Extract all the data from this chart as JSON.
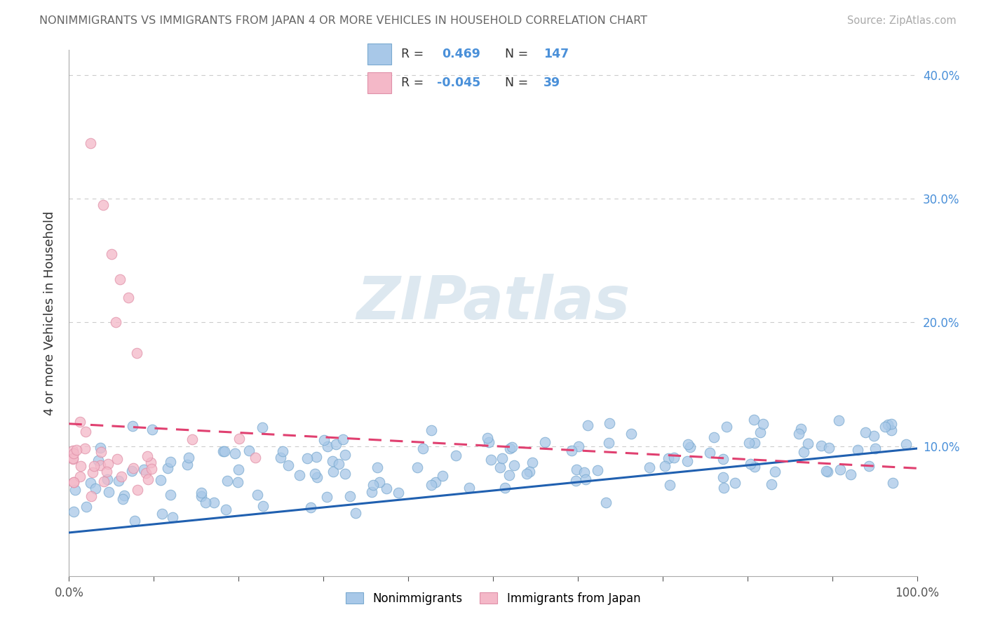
{
  "title": "NONIMMIGRANTS VS IMMIGRANTS FROM JAPAN 4 OR MORE VEHICLES IN HOUSEHOLD CORRELATION CHART",
  "source": "Source: ZipAtlas.com",
  "ylabel": "4 or more Vehicles in Household",
  "xlim": [
    0,
    1.0
  ],
  "ylim": [
    -0.005,
    0.42
  ],
  "blue_color": "#a8c8e8",
  "pink_color": "#f4b8c8",
  "blue_line_color": "#2060b0",
  "pink_line_color": "#e04070",
  "blue_edge_color": "#7aaad0",
  "pink_edge_color": "#e090a8",
  "R_blue": 0.469,
  "N_blue": 147,
  "R_pink": -0.045,
  "N_pink": 39,
  "legend_labels": [
    "Nonimmigrants",
    "Immigrants from Japan"
  ],
  "background_color": "#ffffff",
  "grid_color": "#cccccc",
  "title_color": "#666666",
  "blue_line_start_y": 0.03,
  "blue_line_end_y": 0.098,
  "pink_line_start_y": 0.118,
  "pink_line_end_y": 0.082,
  "watermark_text": "ZIPatlas",
  "watermark_color": "#dde8f0",
  "axis_label_color": "#4a90d9",
  "right_ytick_labels": [
    "10.0%",
    "20.0%",
    "30.0%",
    "40.0%"
  ],
  "right_ytick_values": [
    0.1,
    0.2,
    0.3,
    0.4
  ]
}
